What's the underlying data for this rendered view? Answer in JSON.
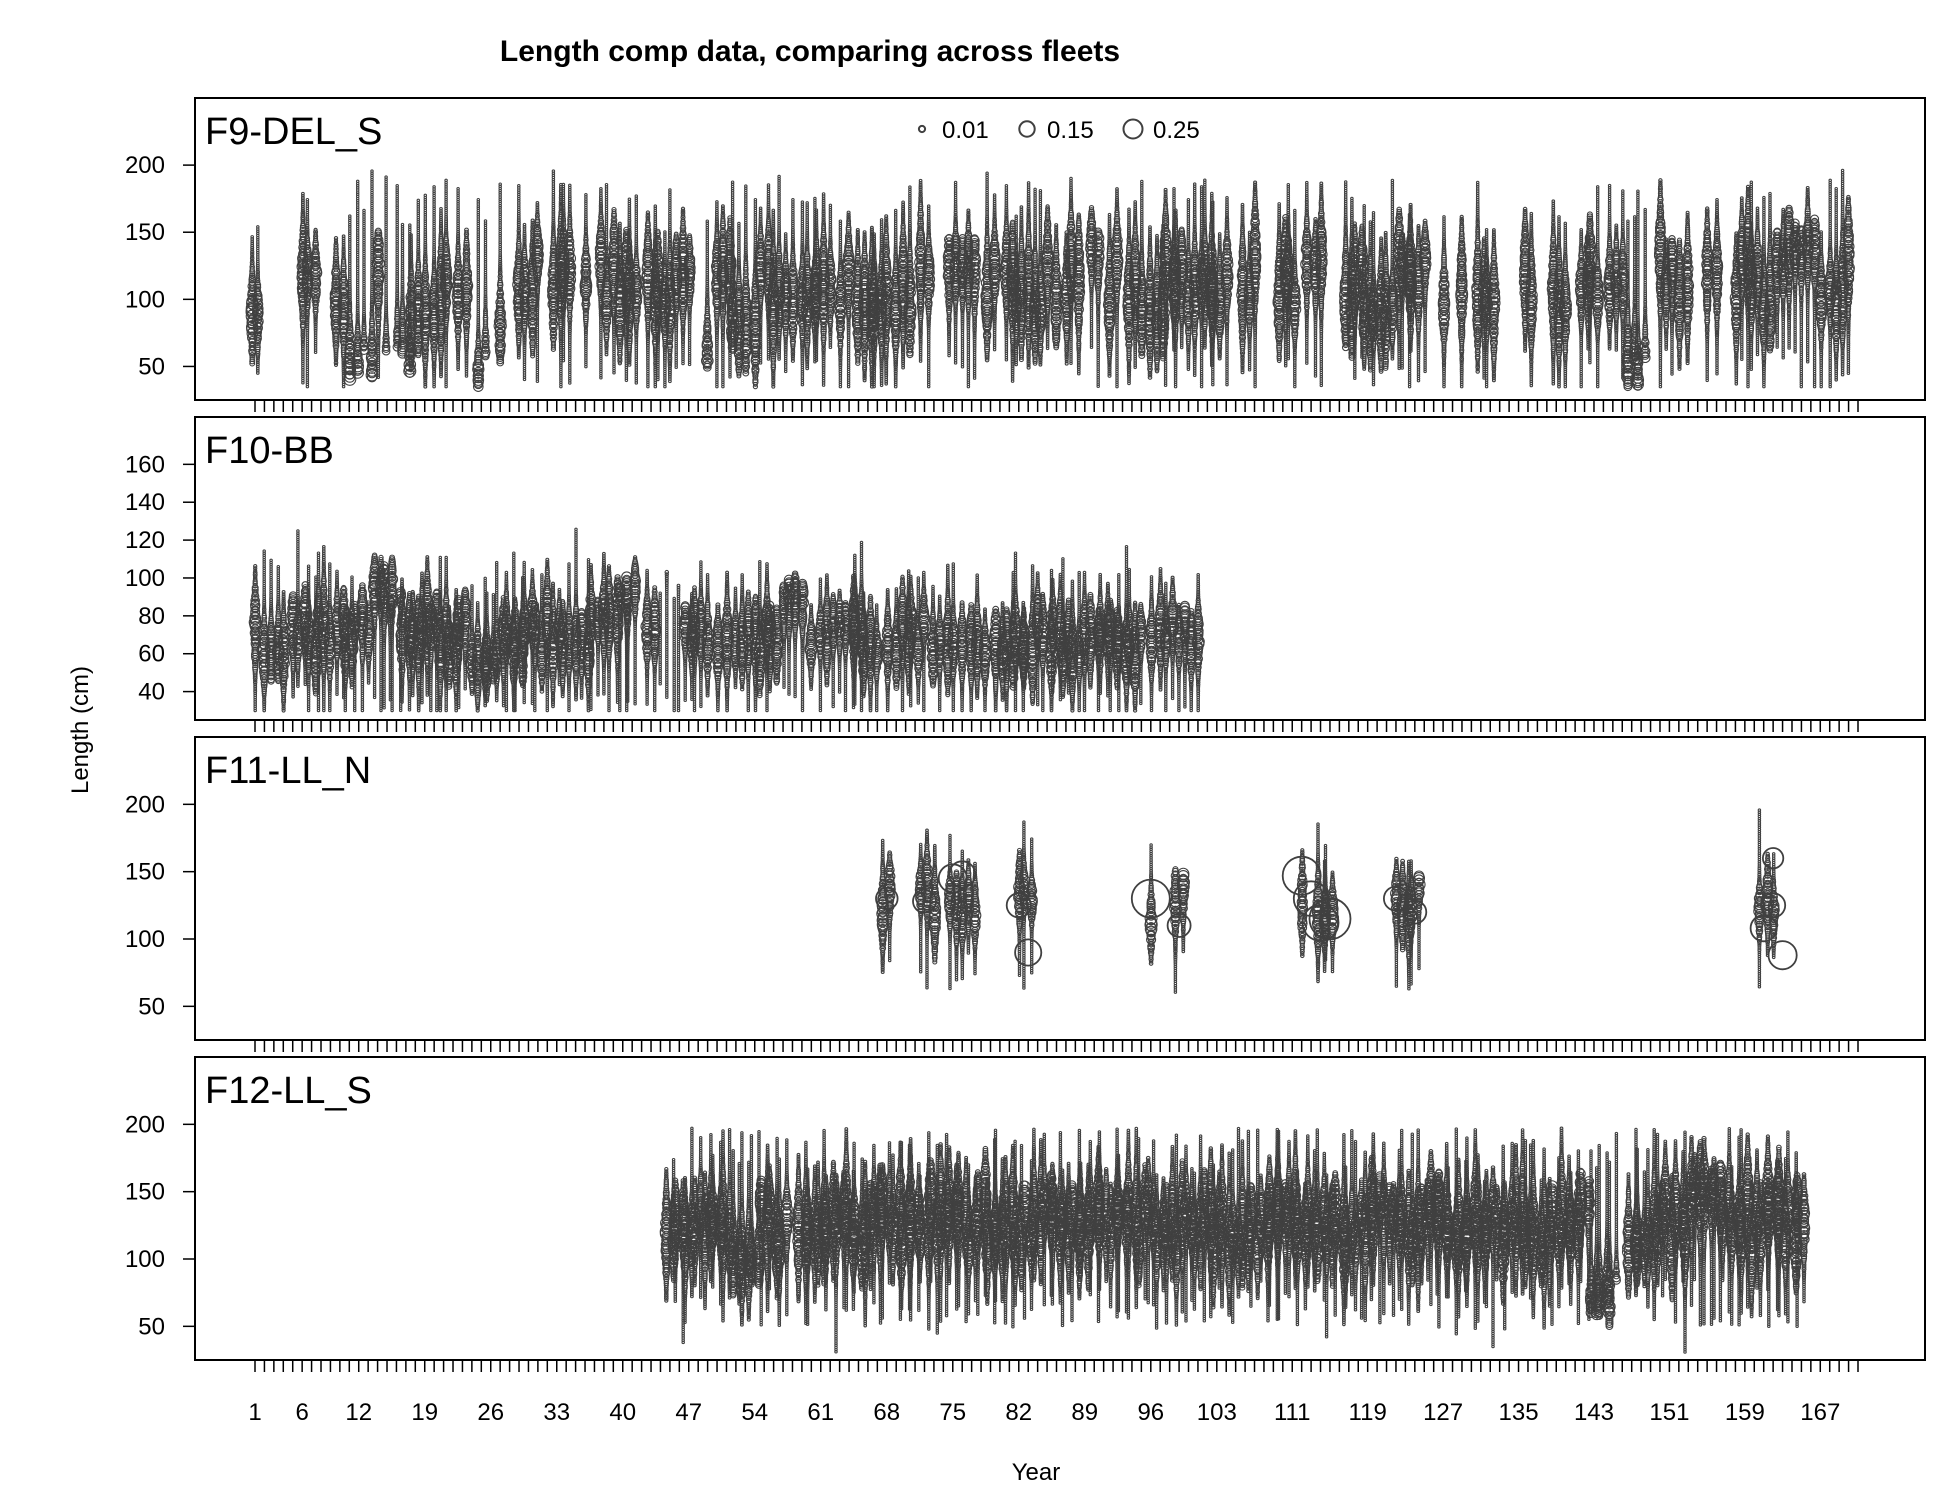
{
  "chart_data": {
    "type": "scatter",
    "title": "Length comp data,  comparing across fleets",
    "xlabel": "Year",
    "ylabel": "Length (cm)",
    "xlim": [
      1,
      171
    ],
    "x_tick_labels": [
      1,
      6,
      12,
      19,
      26,
      33,
      40,
      47,
      54,
      61,
      68,
      75,
      82,
      89,
      96,
      103,
      111,
      119,
      127,
      135,
      143,
      151,
      159,
      167
    ],
    "bubble_legend": {
      "placement": "top-center of first panel",
      "values": [
        0.01,
        0.15,
        0.25
      ],
      "labels": [
        "0.01",
        "0.15",
        "0.25"
      ]
    },
    "colors": {
      "marker": "#404040",
      "frame": "#000000"
    },
    "panels": [
      {
        "name": "F9-DEL_S",
        "ylim": [
          25,
          250
        ],
        "yticks": [
          50,
          100,
          150,
          200
        ],
        "years": [
          1,
          6,
          7,
          10,
          11,
          12,
          13,
          14,
          15,
          16,
          17,
          18,
          19,
          20,
          21,
          23,
          25,
          27,
          29,
          30,
          31,
          33,
          34,
          36,
          38,
          39,
          40,
          41,
          43,
          44,
          45,
          46,
          47,
          49,
          50,
          51,
          52,
          53,
          54,
          55,
          56,
          57,
          58,
          59,
          60,
          61,
          62,
          63,
          64,
          65,
          66,
          67,
          68,
          69,
          70,
          72,
          75,
          76,
          77,
          79,
          81,
          82,
          83,
          84,
          85,
          86,
          87,
          88,
          90,
          92,
          94,
          95,
          96,
          97,
          98,
          99,
          100,
          101,
          102,
          103,
          104,
          106,
          107,
          110,
          111,
          113,
          114,
          117,
          118,
          119,
          120,
          121,
          122,
          123,
          124,
          125,
          127,
          129,
          131,
          132,
          136,
          139,
          140,
          142,
          143,
          145,
          146,
          147,
          148,
          150,
          151,
          152,
          153,
          155,
          156,
          158,
          159,
          160,
          161,
          162,
          163,
          164,
          165,
          166,
          167,
          168,
          169,
          170
        ],
        "peaks": [
          [
            1,
            88
          ],
          [
            6,
            118
          ],
          [
            12,
            45
          ],
          [
            16,
            46
          ],
          [
            19,
            88
          ],
          [
            26,
            43
          ],
          [
            27,
            78
          ],
          [
            47,
            120
          ],
          [
            48,
            50
          ],
          [
            53,
            78
          ],
          [
            59,
            100
          ],
          [
            66,
            95
          ],
          [
            76,
            125
          ],
          [
            90,
            140
          ],
          [
            96,
            90
          ],
          [
            120,
            90
          ],
          [
            148,
            45
          ],
          [
            165,
            140
          ]
        ],
        "length_range_typical": [
          50,
          170
        ],
        "length_extremes": [
          35,
          197
        ]
      },
      {
        "name": "F10-BB",
        "ylim": [
          25,
          185
        ],
        "yticks": [
          40,
          60,
          80,
          100,
          120,
          140,
          160
        ],
        "years": [
          1,
          2,
          3,
          4,
          5,
          6,
          7,
          8,
          9,
          10,
          11,
          12,
          13,
          14,
          15,
          16,
          17,
          18,
          19,
          20,
          21,
          22,
          23,
          24,
          25,
          26,
          27,
          28,
          29,
          30,
          31,
          32,
          33,
          34,
          35,
          36,
          37,
          38,
          39,
          40,
          41,
          43,
          44,
          45,
          46,
          47,
          48,
          49,
          50,
          51,
          52,
          53,
          54,
          55,
          56,
          57,
          58,
          59,
          60,
          61,
          62,
          63,
          64,
          65,
          66,
          67,
          68,
          69,
          70,
          71,
          72,
          73,
          74,
          75,
          76,
          77,
          78,
          80,
          81,
          82,
          83,
          84,
          85,
          86,
          87,
          88,
          89,
          90,
          91,
          92,
          93,
          94,
          95,
          96,
          97,
          98,
          99,
          100,
          101
        ],
        "peaks": [
          [
            3,
            60
          ],
          [
            15,
            95
          ],
          [
            25,
            55
          ],
          [
            38,
            80
          ],
          [
            40,
            95
          ],
          [
            45,
            130
          ],
          [
            58,
            90
          ],
          [
            64,
            75
          ],
          [
            75,
            65
          ],
          [
            90,
            70
          ]
        ],
        "length_range_typical": [
          35,
          100
        ],
        "length_extremes": [
          30,
          150
        ]
      },
      {
        "name": "F11-LL_N",
        "ylim": [
          25,
          250
        ],
        "yticks": [
          50,
          100,
          150,
          200
        ],
        "years": [
          68,
          72,
          73,
          75,
          76,
          77,
          82,
          83,
          96,
          99,
          112,
          114,
          115,
          122,
          123,
          124,
          161,
          162
        ],
        "bubbles": [
          [
            68,
            130,
            0.06
          ],
          [
            72,
            128,
            0.07
          ],
          [
            75,
            145,
            0.12
          ],
          [
            76,
            148,
            0.1
          ],
          [
            82,
            125,
            0.08
          ],
          [
            83,
            90,
            0.1
          ],
          [
            96,
            130,
            0.25
          ],
          [
            99,
            110,
            0.07
          ],
          [
            112,
            147,
            0.25
          ],
          [
            113,
            130,
            0.2
          ],
          [
            114,
            112,
            0.22
          ],
          [
            115,
            115,
            0.3
          ],
          [
            122,
            130,
            0.08
          ],
          [
            124,
            120,
            0.07
          ],
          [
            161,
            108,
            0.1
          ],
          [
            162,
            125,
            0.08
          ],
          [
            162,
            160,
            0.05
          ],
          [
            163,
            88,
            0.12
          ]
        ],
        "length_range_typical": [
          80,
          170
        ],
        "length_extremes": [
          25,
          197
        ]
      },
      {
        "name": "F12-LL_S",
        "ylim": [
          25,
          250
        ],
        "yticks": [
          50,
          100,
          150,
          200
        ],
        "years_range": [
          45,
          165
        ],
        "gap_years": [
          58,
          146
        ],
        "peaks": [
          [
            53,
            100
          ],
          [
            60,
            120
          ],
          [
            75,
            135
          ],
          [
            110,
            135
          ],
          [
            144,
            70
          ],
          [
            147,
            110
          ],
          [
            155,
            150
          ]
        ],
        "length_range_typical": [
          70,
          180
        ],
        "length_extremes": [
          25,
          197
        ]
      }
    ]
  }
}
